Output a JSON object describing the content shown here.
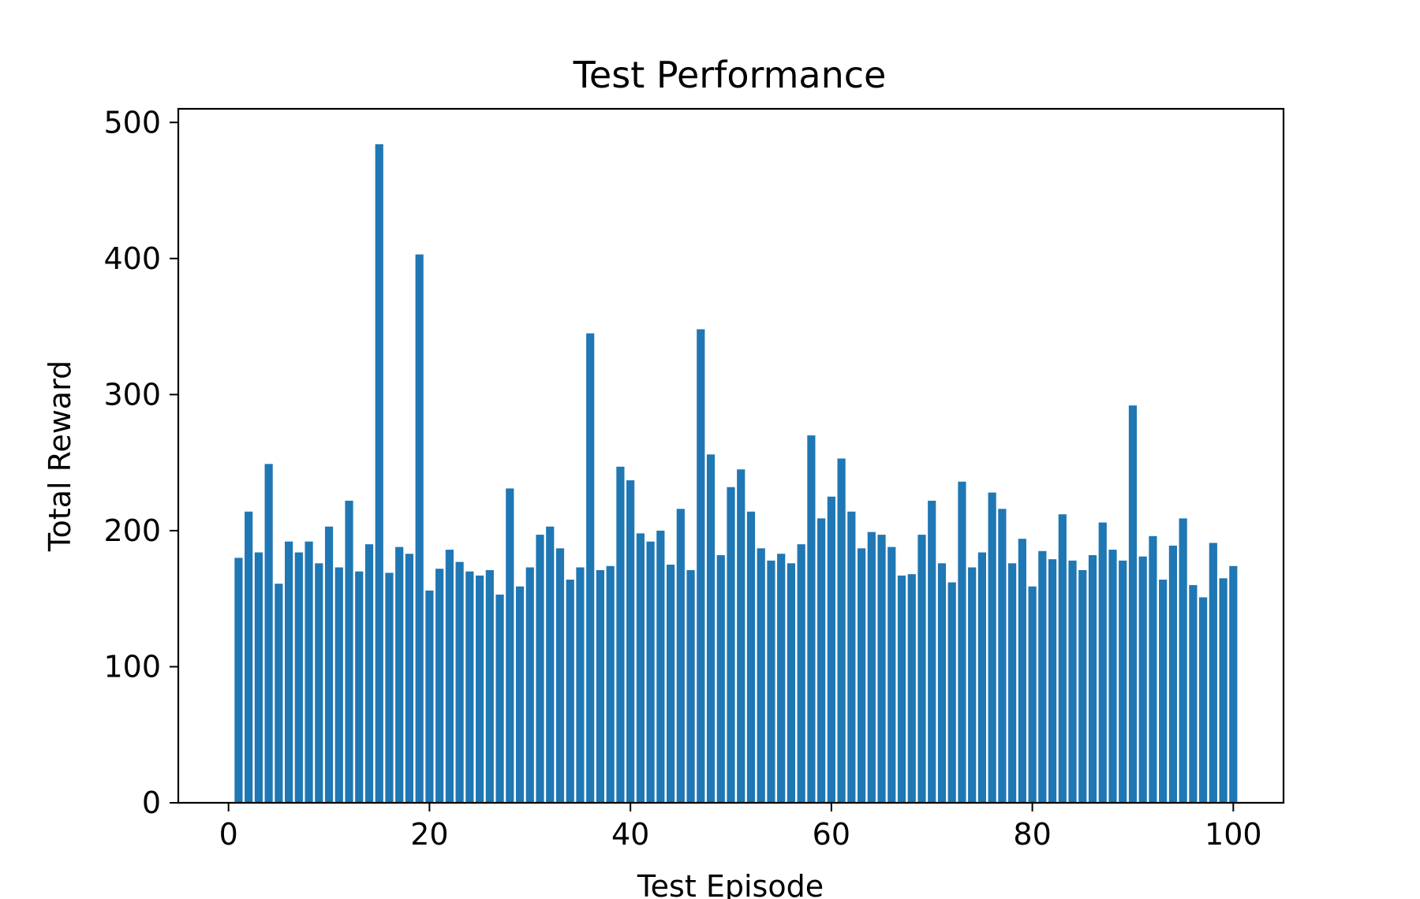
{
  "chart_data": {
    "type": "bar",
    "title": "Test Performance",
    "xlabel": "Test Episode",
    "ylabel": "Total Reward",
    "xlim": [
      -5,
      105
    ],
    "ylim": [
      0,
      510
    ],
    "xticks": [
      0,
      20,
      40,
      60,
      80,
      100
    ],
    "yticks": [
      0,
      100,
      200,
      300,
      400,
      500
    ],
    "grid": false,
    "bar_color": "#1f77b4",
    "x": [
      1,
      2,
      3,
      4,
      5,
      6,
      7,
      8,
      9,
      10,
      11,
      12,
      13,
      14,
      15,
      16,
      17,
      18,
      19,
      20,
      21,
      22,
      23,
      24,
      25,
      26,
      27,
      28,
      29,
      30,
      31,
      32,
      33,
      34,
      35,
      36,
      37,
      38,
      39,
      40,
      41,
      42,
      43,
      44,
      45,
      46,
      47,
      48,
      49,
      50,
      51,
      52,
      53,
      54,
      55,
      56,
      57,
      58,
      59,
      60,
      61,
      62,
      63,
      64,
      65,
      66,
      67,
      68,
      69,
      70,
      71,
      72,
      73,
      74,
      75,
      76,
      77,
      78,
      79,
      80,
      81,
      82,
      83,
      84,
      85,
      86,
      87,
      88,
      89,
      90,
      91,
      92,
      93,
      94,
      95,
      96,
      97,
      98,
      99,
      100
    ],
    "values": [
      180,
      214,
      184,
      249,
      161,
      192,
      184,
      192,
      176,
      203,
      173,
      222,
      170,
      190,
      484,
      169,
      188,
      183,
      403,
      156,
      172,
      186,
      177,
      170,
      167,
      171,
      153,
      231,
      159,
      173,
      197,
      203,
      187,
      164,
      173,
      345,
      171,
      174,
      247,
      237,
      198,
      192,
      200,
      175,
      216,
      171,
      348,
      256,
      182,
      232,
      245,
      214,
      187,
      178,
      183,
      176,
      190,
      270,
      209,
      225,
      253,
      214,
      187,
      199,
      197,
      188,
      167,
      168,
      197,
      222,
      176,
      162,
      236,
      173,
      184,
      228,
      216,
      176,
      194,
      159,
      185,
      179,
      212,
      178,
      171,
      182,
      206,
      186,
      178,
      292,
      181,
      196,
      164,
      189,
      209,
      160,
      151,
      191,
      165,
      174
    ]
  }
}
